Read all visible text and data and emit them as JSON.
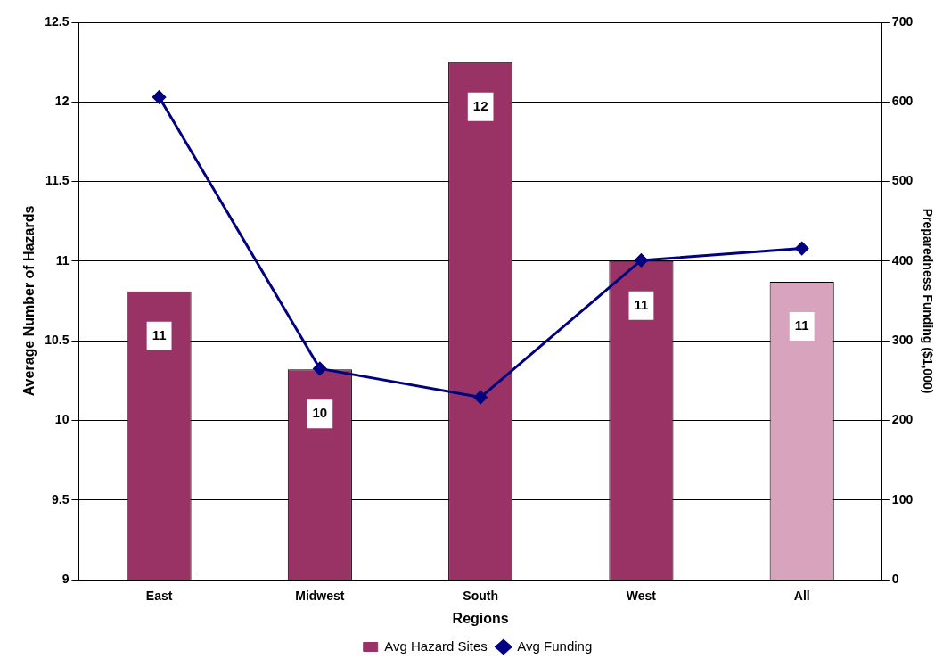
{
  "chart_data": {
    "type": "bar",
    "xlabel": "Regions",
    "ylabel": "Average Number of Hazards",
    "y2label": "Preparedness Funding ($1,000)",
    "categories": [
      "East",
      "Midwest",
      "South",
      "West",
      "All"
    ],
    "series": [
      {
        "name": "Avg Hazard Sites",
        "color": "#993366",
        "colors": [
          "#993366",
          "#993366",
          "#993366",
          "#993366",
          "#d8a3bd"
        ],
        "values": [
          10.81,
          10.32,
          12.25,
          11.0,
          10.87
        ],
        "value_labels": [
          "11",
          "10",
          "12",
          "11",
          "11"
        ]
      },
      {
        "name": "Avg Funding",
        "type": "line",
        "axis": "y2",
        "color": "#000080",
        "values": [
          606,
          265,
          229,
          401,
          416
        ]
      }
    ],
    "ylim": [
      9,
      12.5
    ],
    "yticks": [
      9,
      9.5,
      10,
      10.5,
      11,
      11.5,
      12,
      12.5
    ],
    "y2lim": [
      0,
      700
    ],
    "y2ticks": [
      0,
      100,
      200,
      300,
      400,
      500,
      600,
      700
    ],
    "grid": "y",
    "legend": "bottom",
    "marker": "diamond",
    "line_style": "solid"
  }
}
